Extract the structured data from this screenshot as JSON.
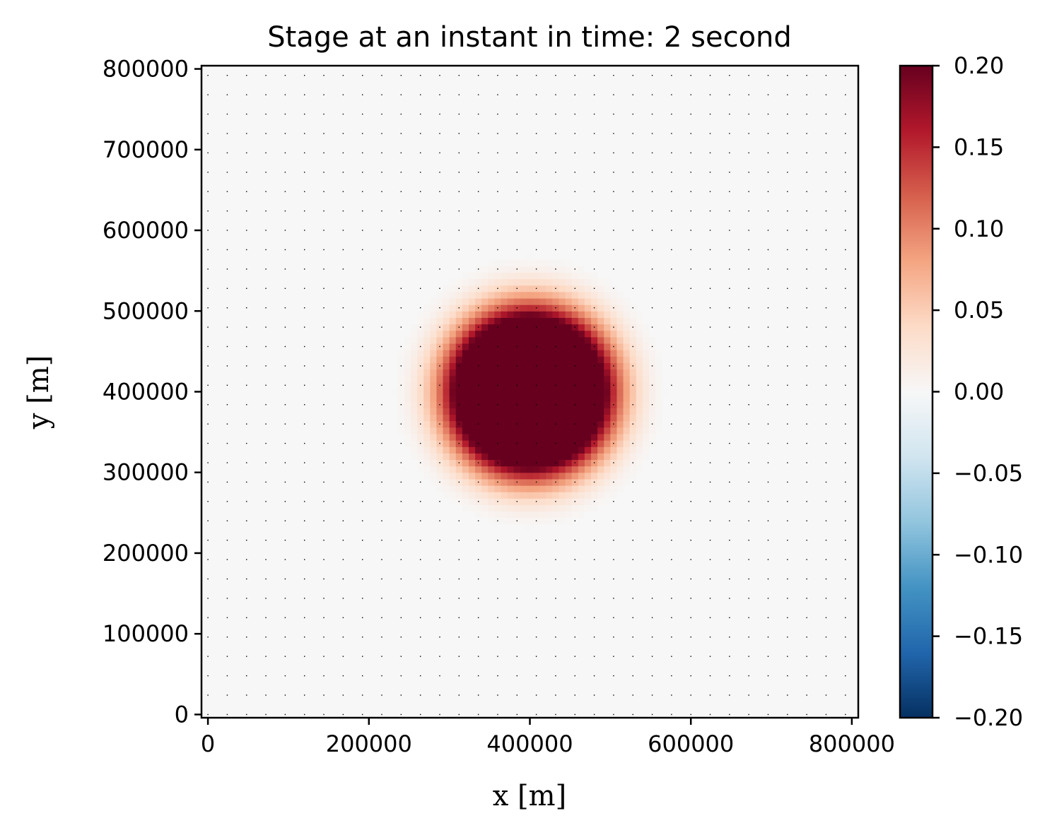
{
  "chart_data": {
    "type": "heatmap",
    "title": "Stage at an instant in time: 2 second",
    "xlabel": "x [m]",
    "ylabel": "y [m]",
    "xlim": [
      -8000,
      808000
    ],
    "ylim": [
      -4000,
      804000
    ],
    "x_ticks": [
      0,
      200000,
      400000,
      600000,
      800000
    ],
    "x_tick_labels": [
      "0",
      "200000",
      "400000",
      "600000",
      "800000"
    ],
    "y_ticks": [
      0,
      100000,
      200000,
      300000,
      400000,
      500000,
      600000,
      700000,
      800000
    ],
    "y_tick_labels": [
      "0",
      "100000",
      "200000",
      "300000",
      "400000",
      "500000",
      "600000",
      "700000",
      "800000"
    ],
    "colormap": "RdBu_r",
    "color_range": [
      -0.2,
      0.2
    ],
    "colorbar_ticks": [
      0.2,
      0.15,
      0.1,
      0.05,
      0.0,
      -0.05,
      -0.1,
      -0.15,
      -0.2
    ],
    "colorbar_tick_labels": [
      "0.20",
      "0.15",
      "0.10",
      "0.05",
      "0.00",
      "−0.05",
      "−0.10",
      "−0.15",
      "−0.20"
    ],
    "field": {
      "shape": "circular mound",
      "center": [
        400000,
        400000
      ],
      "core_radius": 95000,
      "falloff_radius": 180000,
      "peak_value": 0.2,
      "background_value": 0.0,
      "grid_spacing": 8000
    },
    "mesh_points_spacing": 24000,
    "colors": {
      "core": "#67001f",
      "background": "#f7f7f7",
      "mesh_points": "#000000"
    }
  }
}
